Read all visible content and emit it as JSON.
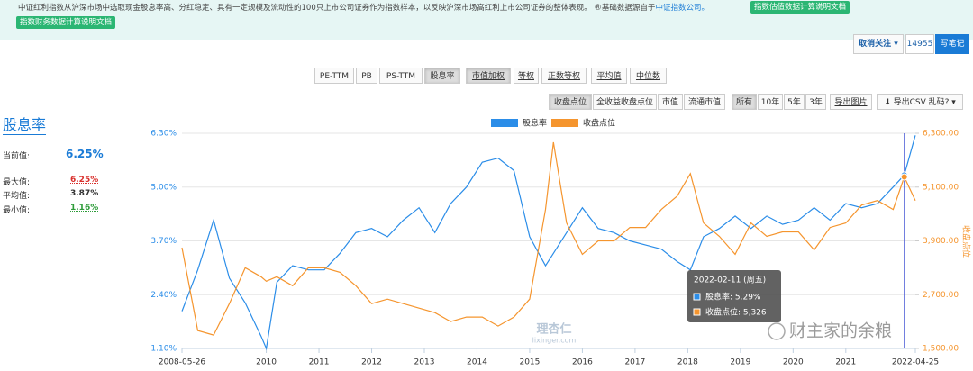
{
  "header": {
    "description": "中证红利指数从沪深市场中选取现金股息率高、分红稳定、具有一定规模及流动性的100只上市公司证券作为指数样本，以反映沪深市场高红利上市公司证券的整体表现。 ®基础数据源自于",
    "source_link": "中证指数公司。",
    "buttons": [
      "指数估值数据计算说明文档",
      "指数财务数据计算说明文档"
    ]
  },
  "follow": {
    "unfollow": "取消关注 ▾",
    "count": "14955",
    "note": "写笔记"
  },
  "metric_tabs": [
    "PE-TTM",
    "PB",
    "PS-TTM",
    "股息率"
  ],
  "weight_tabs": [
    "市值加权",
    "等权",
    "正数等权",
    "平均值",
    "中位数"
  ],
  "series_tabs": [
    "收盘点位",
    "全收益收盘点位",
    "市值",
    "流通市值"
  ],
  "range_tabs": [
    "所有",
    "10年",
    "5年",
    "3年"
  ],
  "export_image": "导出图片",
  "export_csv": "⬇ 导出CSV 乱码? ▾",
  "sidebar": {
    "title": "股息率",
    "rows": [
      {
        "label": "当前值:",
        "value": "6.25%"
      },
      {
        "label": "最大值:",
        "value": "6.25%"
      },
      {
        "label": "平均值:",
        "value": "3.87%"
      },
      {
        "label": "最小值:",
        "value": "1.16%"
      }
    ]
  },
  "chart_data": {
    "type": "line",
    "x": [
      2008.4,
      2008.7,
      2009.0,
      2009.3,
      2009.6,
      2009.9,
      2010.0,
      2010.2,
      2010.5,
      2010.8,
      2011.1,
      2011.4,
      2011.7,
      2012.0,
      2012.3,
      2012.6,
      2012.9,
      2013.2,
      2013.5,
      2013.8,
      2014.1,
      2014.4,
      2014.7,
      2015.0,
      2015.3,
      2015.45,
      2015.7,
      2016.0,
      2016.3,
      2016.6,
      2016.9,
      2017.2,
      2017.5,
      2017.8,
      2018.05,
      2018.3,
      2018.6,
      2018.9,
      2019.2,
      2019.5,
      2019.8,
      2020.1,
      2020.4,
      2020.7,
      2021.0,
      2021.3,
      2021.6,
      2021.9,
      2022.11,
      2022.32
    ],
    "series": [
      {
        "name": "股息率",
        "color": "#2b8de8",
        "axis": "y",
        "values": [
          2.0,
          3.0,
          4.2,
          2.8,
          2.2,
          1.4,
          1.1,
          2.7,
          3.1,
          3.0,
          3.0,
          3.4,
          3.9,
          4.0,
          3.8,
          4.2,
          4.5,
          3.9,
          4.6,
          5.0,
          5.6,
          5.7,
          5.4,
          3.8,
          3.1,
          3.4,
          3.9,
          4.5,
          4.0,
          3.9,
          3.7,
          3.6,
          3.5,
          3.2,
          3.0,
          3.8,
          4.0,
          4.3,
          4.0,
          4.3,
          4.1,
          4.2,
          4.5,
          4.2,
          4.6,
          4.5,
          4.6,
          5.0,
          5.29,
          6.25
        ]
      },
      {
        "name": "收盘点位",
        "color": "#f5952e",
        "axis": "y2",
        "values": [
          3750,
          1900,
          1800,
          2500,
          3300,
          3100,
          3000,
          3100,
          2900,
          3300,
          3300,
          3200,
          2900,
          2500,
          2600,
          2500,
          2400,
          2300,
          2100,
          2200,
          2200,
          2000,
          2200,
          2600,
          4600,
          6100,
          4300,
          3600,
          3900,
          3900,
          4200,
          4200,
          4600,
          4900,
          5400,
          4300,
          4000,
          3600,
          4300,
          4000,
          4100,
          4100,
          3700,
          4200,
          4300,
          4700,
          4800,
          4600,
          5326,
          4800
        ]
      }
    ],
    "xlim": [
      2008.4,
      2022.32
    ],
    "xticks": [
      {
        "value": 2008.4,
        "label": "2008-05-26"
      },
      2010,
      2011,
      2012,
      2013,
      2014,
      2015,
      2016,
      2017,
      2018,
      2019,
      2020,
      2021,
      {
        "value": 2022.32,
        "label": "2022-04-25"
      }
    ],
    "ylim": [
      1.1,
      6.3
    ],
    "yticks": [
      {
        "value": 1.1,
        "label": "1.10%"
      },
      {
        "value": 2.4,
        "label": "2.40%"
      },
      {
        "value": 3.7,
        "label": "3.70%"
      },
      {
        "value": 5.0,
        "label": "5.00%"
      },
      {
        "value": 6.3,
        "label": "6.30%"
      }
    ],
    "y2lim": [
      1500,
      6300
    ],
    "y2ticks": [
      {
        "value": 1500,
        "label": "1,500.00"
      },
      {
        "value": 2700,
        "label": "2,700.00"
      },
      {
        "value": 3900,
        "label": "3,900.00"
      },
      {
        "value": 5100,
        "label": "5,100.00"
      },
      {
        "value": 6300,
        "label": "6,300.00"
      }
    ],
    "y2_label": "收盘点位",
    "grid": true,
    "tooltip": {
      "title": "2022-02-11 (周五)",
      "rows": [
        "股息率: 5.29%",
        "收盘点位: 5,326"
      ]
    },
    "watermarks": [
      "理杏仁",
      "lixinger.com",
      "财主家的余粮"
    ]
  }
}
